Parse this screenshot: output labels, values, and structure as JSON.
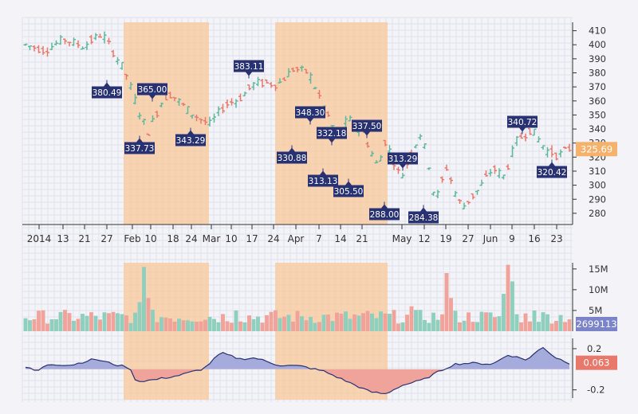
{
  "chart_data": [
    {
      "type": "ohlc",
      "panel": "price",
      "x_tick_labels": [
        "2014",
        "13",
        "21",
        "27",
        "Feb",
        "10",
        "18",
        "24",
        "Mar",
        "10",
        "17",
        "24",
        "Apr",
        "7",
        "14",
        "21",
        "May",
        "12",
        "19",
        "27",
        "Jun",
        "9",
        "16",
        "23"
      ],
      "y_ticks": [
        280,
        290,
        300,
        310,
        320,
        330,
        340,
        350,
        360,
        370,
        380,
        390,
        400,
        410
      ],
      "ylim": [
        272,
        416
      ],
      "last_price": "325.69",
      "shaded_regions": [
        {
          "from": "Jan 28",
          "to": "Mar 1"
        },
        {
          "from": "Mar 28",
          "to": "Apr 30"
        }
      ],
      "annotations": [
        {
          "label": "380.49",
          "side": "below"
        },
        {
          "label": "365.00",
          "side": "above"
        },
        {
          "label": "337.73",
          "side": "below"
        },
        {
          "label": "343.29",
          "side": "below"
        },
        {
          "label": "383.11",
          "side": "above"
        },
        {
          "label": "330.88",
          "side": "below"
        },
        {
          "label": "348.30",
          "side": "above"
        },
        {
          "label": "313.13",
          "side": "below"
        },
        {
          "label": "332.18",
          "side": "above"
        },
        {
          "label": "305.50",
          "side": "below"
        },
        {
          "label": "337.50",
          "side": "above"
        },
        {
          "label": "288.00",
          "side": "below"
        },
        {
          "label": "313.29",
          "side": "above"
        },
        {
          "label": "284.38",
          "side": "below"
        },
        {
          "label": "340.72",
          "side": "above"
        },
        {
          "label": "320.42",
          "side": "below"
        }
      ]
    },
    {
      "type": "bar",
      "panel": "volume",
      "y_ticks": [
        "5M",
        "10M",
        "15M"
      ],
      "ylim": [
        0,
        16500000
      ],
      "last_value": "2699113"
    },
    {
      "type": "area",
      "panel": "indicator",
      "y_ticks": [
        "0.2",
        "-0.2"
      ],
      "ylim": [
        -0.28,
        0.3
      ],
      "last_value": "0.063"
    }
  ],
  "colors": {
    "up": "#5fb89c",
    "down": "#e8786a",
    "vol_up": "#8fcfbe",
    "vol_down": "#f0a39a",
    "shade": "#f9c89b",
    "label_bg": "#283273",
    "price_badge": "#f6b26b",
    "vol_badge": "#7b84c9",
    "ind_badge": "#e8786a",
    "ind_pos": "#a5acdc",
    "ind_neg": "#f0a39a",
    "ind_line": "#283273"
  }
}
